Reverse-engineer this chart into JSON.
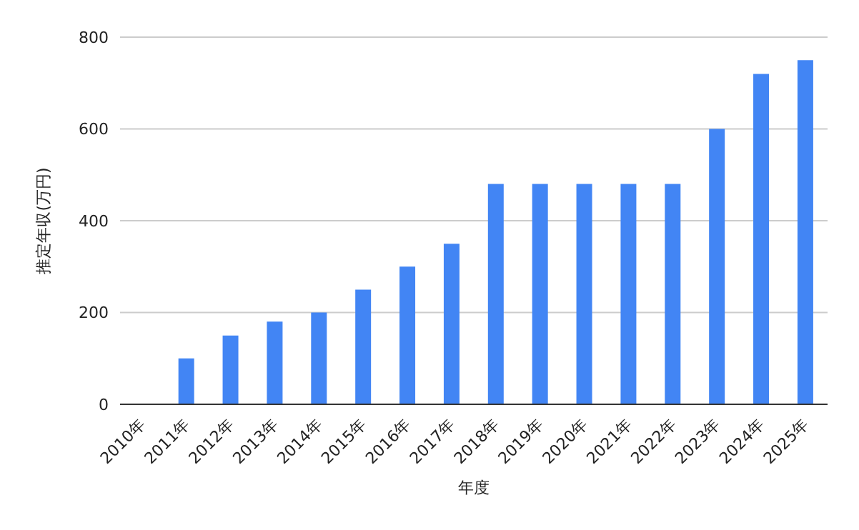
{
  "chart_data": {
    "type": "bar",
    "xlabel": "年度",
    "ylabel": "推定年収(万円)",
    "categories": [
      "2010年",
      "2011年",
      "2012年",
      "2013年",
      "2014年",
      "2015年",
      "2016年",
      "2017年",
      "2018年",
      "2019年",
      "2020年",
      "2021年",
      "2022年",
      "2023年",
      "2024年",
      "2025年"
    ],
    "values": [
      0,
      100,
      150,
      180,
      200,
      250,
      300,
      350,
      480,
      480,
      480,
      480,
      480,
      600,
      720,
      750
    ],
    "color": "#4285f4",
    "ylim": [
      0,
      800
    ],
    "yticks": [
      0,
      200,
      400,
      600,
      800
    ],
    "grid": "y",
    "legend": false
  }
}
